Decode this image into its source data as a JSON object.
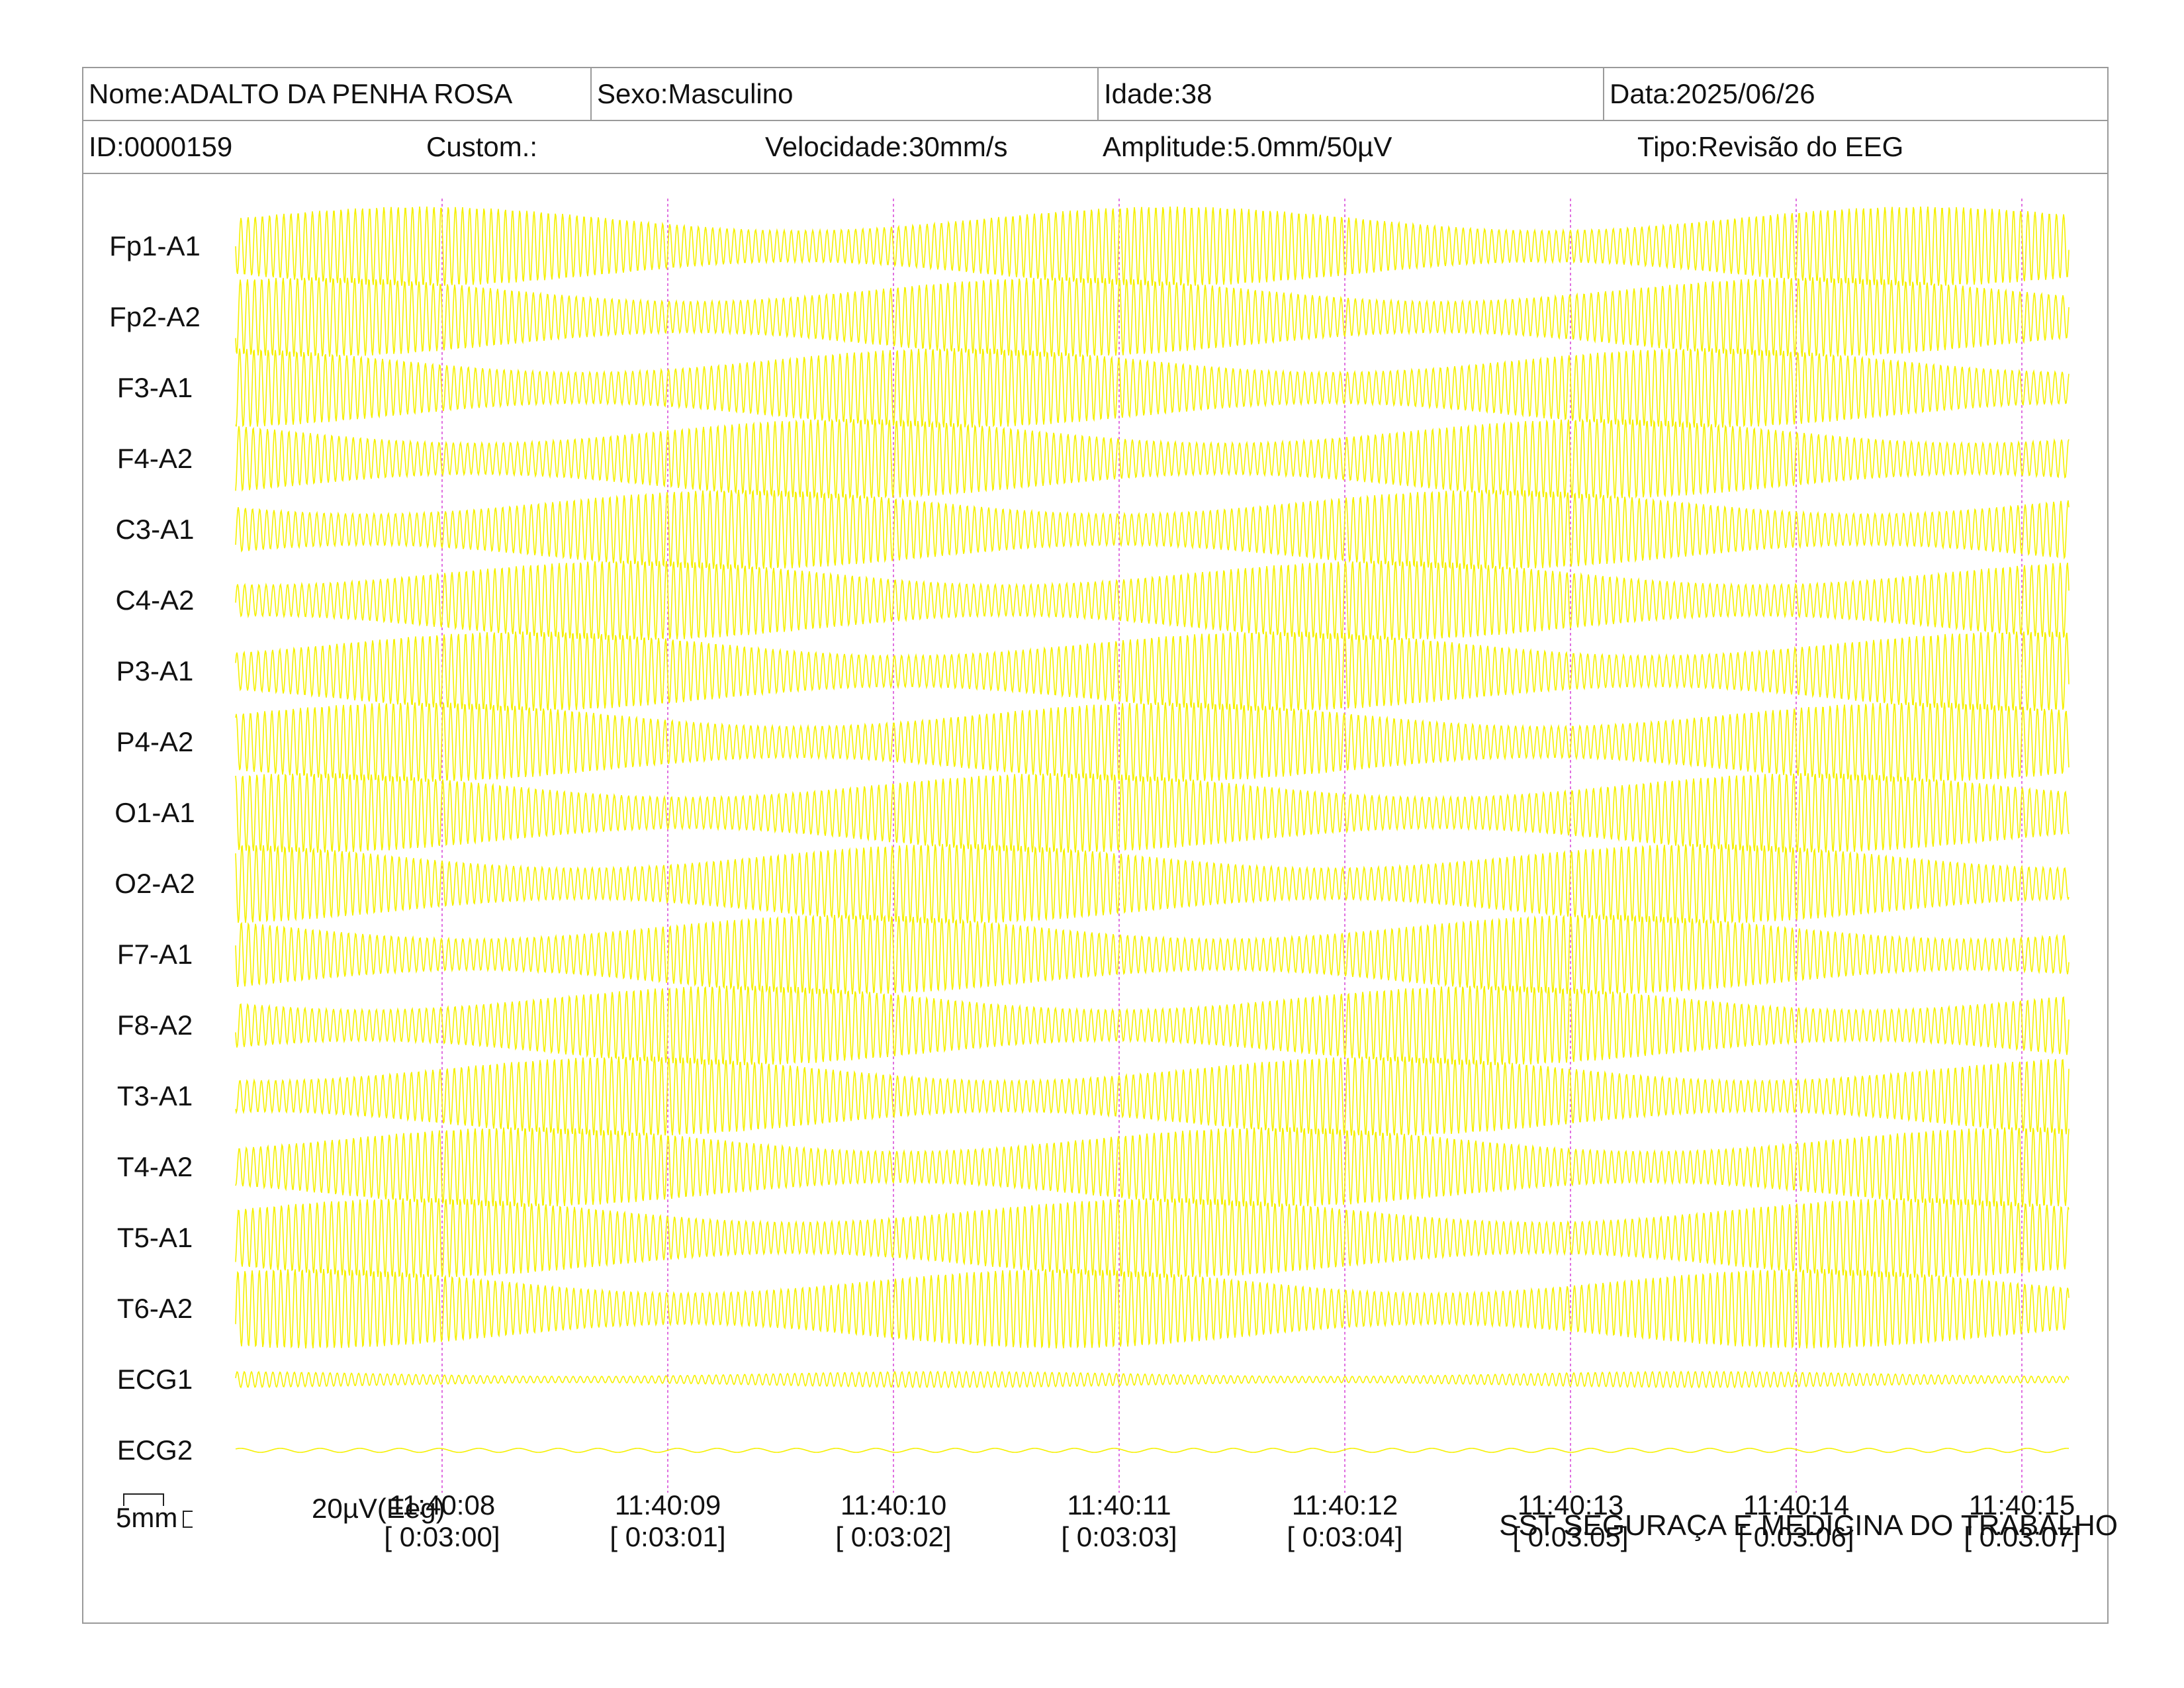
{
  "header": {
    "row1": {
      "name": "Nome:ADALTO DA PENHA ROSA",
      "sex": "Sexo:Masculino",
      "age": "Idade:38",
      "date": "Data:2025/06/26"
    },
    "row2": {
      "id": "ID:0000159",
      "custom": "Custom.:",
      "speed": "Velocidade:30mm/s",
      "amplitude": "Amplitude:5.0mm/50µV",
      "type": "Tipo:Revisão do EEG"
    }
  },
  "channels": [
    "Fp1-A1",
    "Fp2-A2",
    "F3-A1",
    "F4-A2",
    "C3-A1",
    "C4-A2",
    "P3-A1",
    "P4-A2",
    "O1-A1",
    "O2-A2",
    "F7-A1",
    "F8-A2",
    "T3-A1",
    "T4-A2",
    "T5-A1",
    "T6-A2",
    "ECG1",
    "ECG2"
  ],
  "time_marks": [
    {
      "clock": "11:40:08",
      "elapsed": "[ 0:03:00]"
    },
    {
      "clock": "11:40:09",
      "elapsed": "[ 0:03:01]"
    },
    {
      "clock": "11:40:10",
      "elapsed": "[ 0:03:02]"
    },
    {
      "clock": "11:40:11",
      "elapsed": "[ 0:03:03]"
    },
    {
      "clock": "11:40:12",
      "elapsed": "[ 0:03:04]"
    },
    {
      "clock": "11:40:13",
      "elapsed": "[ 0:03:05]"
    },
    {
      "clock": "11:40:14",
      "elapsed": "[ 0:03:06]"
    },
    {
      "clock": "11:40:15",
      "elapsed": "[ 0:03:07]"
    }
  ],
  "scale": {
    "time_unit": "5mm",
    "amp_unit": "20µV(Eeg)"
  },
  "footer": {
    "organization": "SST SEGURAÇA E MEDICINA DO TRABALHO"
  },
  "colors": {
    "trace": "#f5f000",
    "time_marker": "#e070e0",
    "border": "#9a9a9a"
  }
}
